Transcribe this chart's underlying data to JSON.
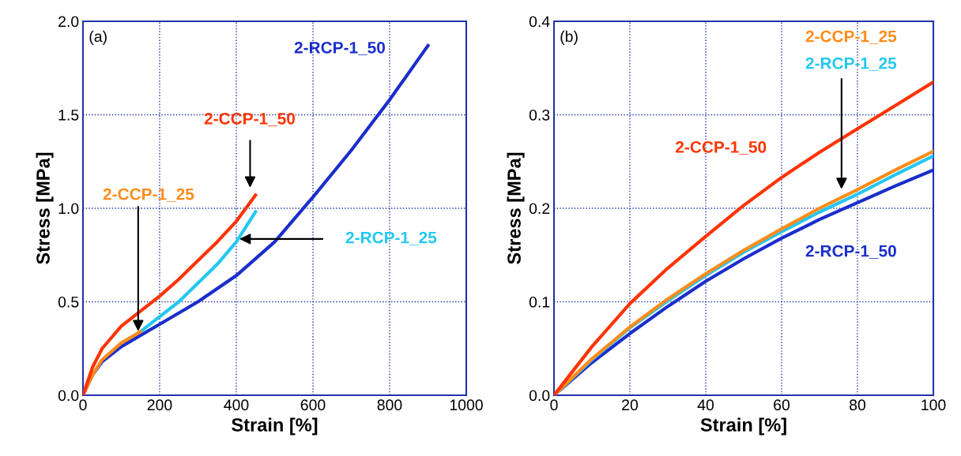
{
  "chart_data": [
    {
      "type": "line",
      "title": "(a)",
      "xlabel": "Strain [%]",
      "ylabel": "Stress [MPa]",
      "xlim": [
        0,
        1000
      ],
      "ylim": [
        0,
        2.0
      ],
      "xticks": [
        0,
        200,
        400,
        600,
        800,
        1000
      ],
      "yticks": [
        {
          "value": 0,
          "label": "0.0"
        },
        0.5,
        {
          "value": 1,
          "label": "1.0"
        },
        1.5,
        {
          "value": 2,
          "label": "2.0"
        }
      ],
      "grid": true,
      "line_style": "solid",
      "marker": "none",
      "series": [
        {
          "name": "2-RCP-1_50",
          "color": "#1a2ecc",
          "x": [
            0,
            25,
            50,
            100,
            150,
            200,
            300,
            400,
            500,
            600,
            700,
            800,
            900
          ],
          "values": [
            0,
            0.11,
            0.18,
            0.26,
            0.32,
            0.38,
            0.5,
            0.64,
            0.82,
            1.06,
            1.31,
            1.58,
            1.87
          ]
        },
        {
          "name": "2-RCP-1_25",
          "color": "#22c8f0",
          "x": [
            150,
            200,
            250,
            300,
            350,
            400,
            450
          ],
          "values": [
            0.34,
            0.42,
            0.5,
            0.6,
            0.7,
            0.82,
            0.98
          ]
        },
        {
          "name": "2-CCP-1_25",
          "color": "#ff8c1a",
          "x": [
            0,
            25,
            50,
            100,
            150
          ],
          "values": [
            0,
            0.11,
            0.19,
            0.28,
            0.34
          ]
        },
        {
          "name": "2-CCP-1_50",
          "color": "#ff3300",
          "x": [
            0,
            25,
            50,
            100,
            150,
            200,
            250,
            300,
            350,
            400,
            450
          ],
          "values": [
            0,
            0.15,
            0.25,
            0.37,
            0.45,
            0.53,
            0.62,
            0.72,
            0.82,
            0.93,
            1.07
          ]
        }
      ]
    },
    {
      "type": "line",
      "title": "(b)",
      "xlabel": "Strain [%]",
      "ylabel": "Stress [MPa]",
      "xlim": [
        0,
        100
      ],
      "ylim": [
        0,
        0.4
      ],
      "xticks": [
        0,
        20,
        40,
        60,
        80,
        100
      ],
      "yticks": [
        {
          "value": 0,
          "label": "0.0"
        },
        0.1,
        0.2,
        0.3,
        0.4
      ],
      "grid": true,
      "line_style": "solid",
      "marker": "none",
      "series": [
        {
          "name": "2-RCP-1_50",
          "color": "#1a2ecc",
          "x": [
            0,
            10,
            20,
            30,
            40,
            50,
            60,
            70,
            80,
            90,
            100
          ],
          "values": [
            0,
            0.035,
            0.066,
            0.095,
            0.122,
            0.146,
            0.168,
            0.188,
            0.206,
            0.224,
            0.241
          ]
        },
        {
          "name": "2-RCP-1_25",
          "color": "#22c8f0",
          "x": [
            0,
            10,
            20,
            30,
            40,
            50,
            60,
            70,
            80,
            90,
            100
          ],
          "values": [
            0,
            0.038,
            0.072,
            0.101,
            0.128,
            0.153,
            0.175,
            0.196,
            0.215,
            0.236,
            0.256
          ]
        },
        {
          "name": "2-CCP-1_25",
          "color": "#ff8c1a",
          "x": [
            0,
            10,
            20,
            30,
            40,
            50,
            60,
            70,
            80,
            90,
            100
          ],
          "values": [
            0,
            0.039,
            0.073,
            0.103,
            0.13,
            0.155,
            0.178,
            0.2,
            0.22,
            0.241,
            0.261
          ]
        },
        {
          "name": "2-CCP-1_50",
          "color": "#ff3300",
          "x": [
            0,
            10,
            20,
            30,
            40,
            50,
            60,
            70,
            80,
            90,
            100
          ],
          "values": [
            0,
            0.052,
            0.098,
            0.136,
            0.17,
            0.203,
            0.233,
            0.26,
            0.285,
            0.31,
            0.335
          ]
        }
      ]
    }
  ]
}
